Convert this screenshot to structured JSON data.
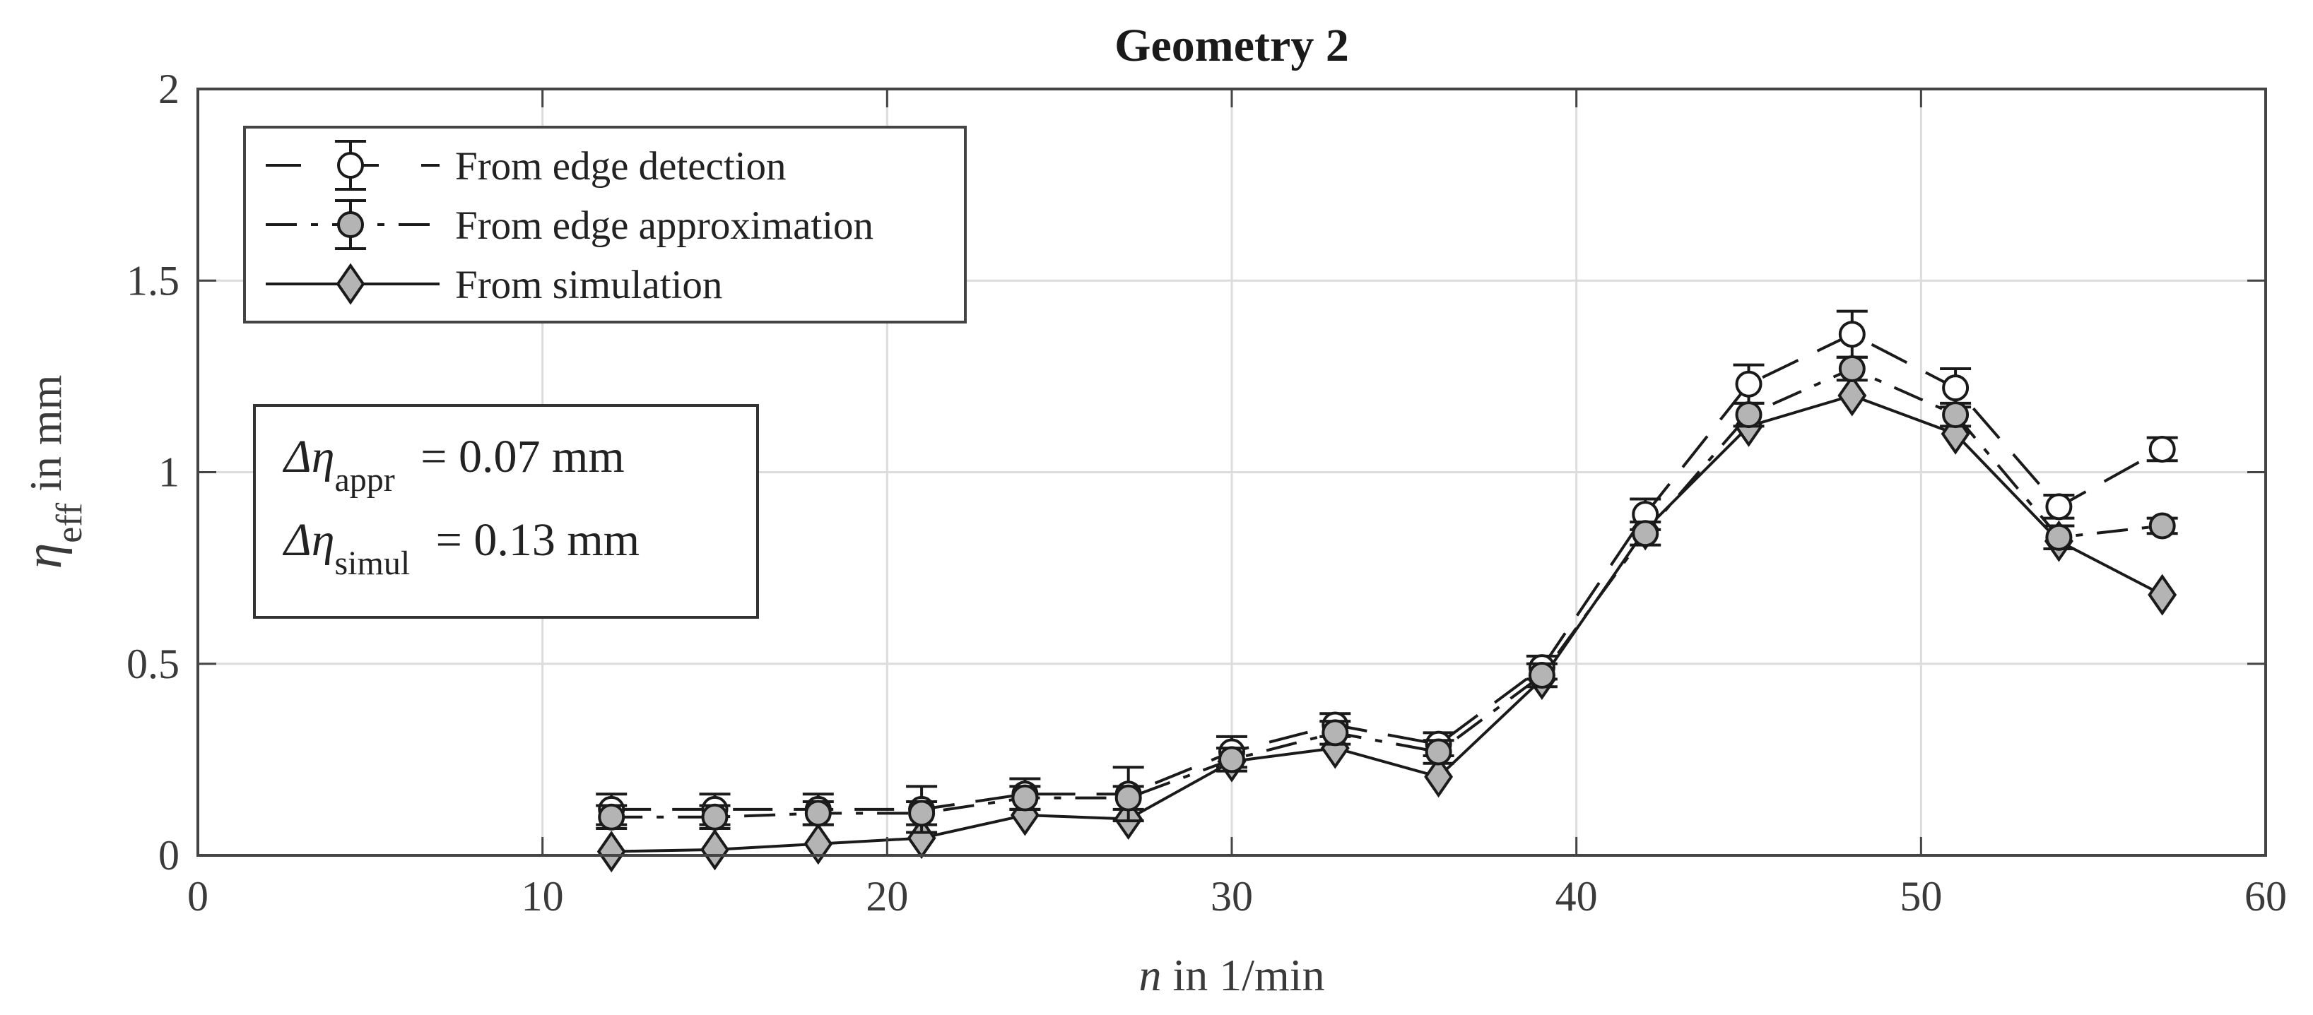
{
  "chart_data": {
    "type": "line",
    "title": "Geometry 2",
    "xlabel": {
      "var": "n",
      "unit": " in 1/min"
    },
    "ylabel": {
      "var": "η",
      "sub": "eff",
      "unit": " in mm"
    },
    "xlim": [
      0,
      60
    ],
    "ylim": [
      0,
      2
    ],
    "xticks": [
      0,
      10,
      20,
      30,
      40,
      50,
      60
    ],
    "yticks": [
      0,
      0.5,
      1,
      1.5,
      2
    ],
    "ytick_labels": [
      "0",
      "0.5",
      "1",
      "1.5",
      "2"
    ],
    "grid": true,
    "legend_position": "top-left",
    "x": [
      12,
      15,
      18,
      21,
      24,
      27,
      30,
      33,
      36,
      39,
      42,
      45,
      48,
      51,
      54,
      57
    ],
    "series": [
      {
        "name": "From edge detection",
        "marker": "circle-open",
        "line": "dashed",
        "values": [
          0.12,
          0.12,
          0.12,
          0.12,
          0.16,
          0.16,
          0.27,
          0.34,
          0.29,
          0.49,
          0.89,
          1.23,
          1.36,
          1.22,
          0.91,
          1.06
        ],
        "error": [
          0.04,
          0.04,
          0.04,
          0.06,
          0.04,
          0.07,
          0.04,
          0.03,
          0.03,
          0.03,
          0.04,
          0.05,
          0.06,
          0.05,
          0.03,
          0.03
        ]
      },
      {
        "name": "From edge approximation",
        "marker": "circle-filled",
        "line": "dashdot",
        "values": [
          0.1,
          0.1,
          0.11,
          0.11,
          0.15,
          0.15,
          0.25,
          0.32,
          0.27,
          0.47,
          0.84,
          1.15,
          1.27,
          1.15,
          0.83,
          0.86
        ],
        "error": [
          0.03,
          0.03,
          0.03,
          0.03,
          0.03,
          0.03,
          0.03,
          0.03,
          0.03,
          0.03,
          0.03,
          0.03,
          0.03,
          0.03,
          0.03,
          0.02
        ]
      },
      {
        "name": "From simulation",
        "marker": "diamond",
        "line": "solid",
        "values": [
          0.01,
          0.015,
          0.03,
          0.045,
          0.105,
          0.095,
          0.245,
          0.28,
          0.205,
          0.46,
          0.85,
          1.12,
          1.2,
          1.1,
          0.82,
          0.68
        ]
      }
    ],
    "annotation": {
      "lines": [
        {
          "prefix": "Δη",
          "sub": "appr",
          "value": " = 0.07 mm"
        },
        {
          "prefix": "Δη",
          "sub": "simul",
          "value": " = 0.13 mm"
        }
      ]
    },
    "colors": {
      "axis": "#444444",
      "grid": "#dcdcdc",
      "line": "#1a1a1a",
      "marker_fill_filled": "#b4b4b4",
      "marker_fill_open": "#ffffff"
    }
  }
}
